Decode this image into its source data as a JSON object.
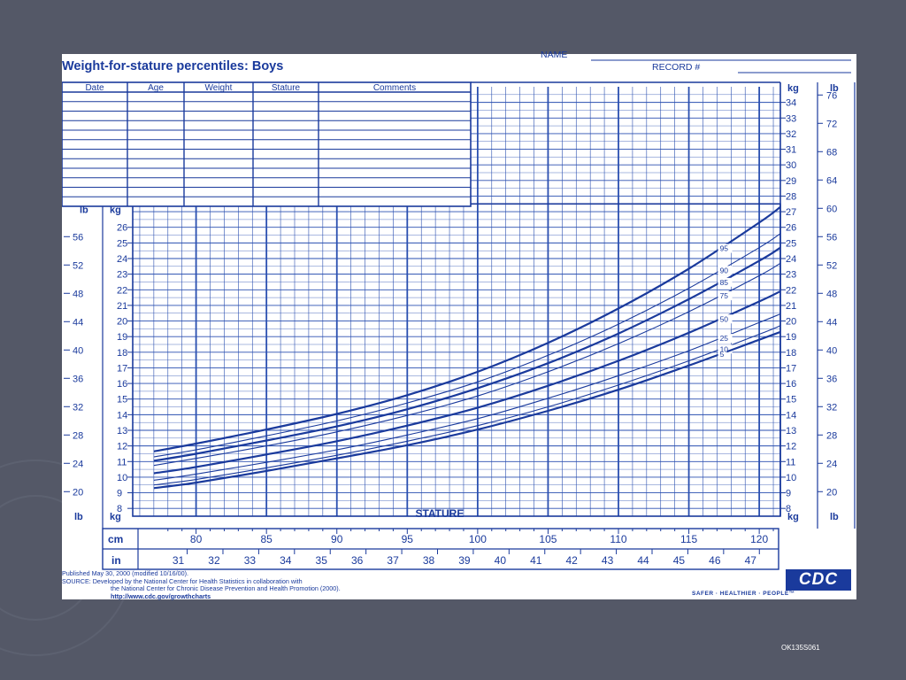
{
  "header": {
    "title": "Weight-for-stature percentiles: Boys",
    "name_label": "NAME",
    "record_label": "RECORD #"
  },
  "record_table": {
    "columns": [
      "Date",
      "Age",
      "Weight",
      "Stature",
      "Comments"
    ],
    "row_count": 12
  },
  "footer": {
    "published": "Published May 30, 2000 (modified 10/16/00).",
    "source_1": "SOURCE: Developed by the National Center for Health Statistics in collaboration with",
    "source_2": "the National Center for Chronic Disease Prevention and Health Promotion (2000).",
    "url": "http://www.cdc.gov/growthcharts",
    "logo_text": "CDC",
    "tagline": "SAFER · HEALTHIER · PEOPLE™"
  },
  "slide": {
    "code": "OK135S061",
    "background_color": "#545867"
  },
  "colors": {
    "ink": "#1a3a9c",
    "grid": "#2a4fb0",
    "paper": "#ffffff"
  },
  "chart_data": {
    "type": "line",
    "title": "Weight-for-stature percentiles: Boys",
    "xlabel": "STATURE",
    "x_unit_primary": "cm",
    "x_unit_secondary": "in",
    "y_unit_primary": "kg",
    "y_unit_secondary": "lb",
    "x_range_cm": [
      77,
      121
    ],
    "y_range_kg": [
      7,
      35
    ],
    "x_ticks_cm": [
      80,
      85,
      90,
      95,
      100,
      105,
      110,
      115,
      120
    ],
    "x_ticks_in": [
      31,
      32,
      33,
      34,
      35,
      36,
      37,
      38,
      39,
      40,
      41,
      42,
      43,
      44,
      45,
      46,
      47
    ],
    "y_ticks_kg_lower": [
      8,
      9,
      10,
      11,
      12,
      13,
      14,
      15,
      16,
      17,
      18,
      19,
      20,
      21,
      22,
      23,
      24,
      25,
      26
    ],
    "y_ticks_kg_upper": [
      8,
      9,
      10,
      11,
      12,
      13,
      14,
      15,
      16,
      17,
      18,
      19,
      20,
      21,
      22,
      23,
      24,
      25,
      26,
      27,
      28,
      29,
      30,
      31,
      32,
      33,
      34
    ],
    "y_ticks_lb_left": [
      20,
      24,
      28,
      32,
      36,
      40,
      44,
      48,
      52,
      56
    ],
    "y_ticks_lb_right": [
      20,
      24,
      28,
      32,
      36,
      40,
      44,
      48,
      52,
      56,
      60,
      64,
      68,
      72,
      76
    ],
    "x_stature_cm": [
      77,
      80,
      85,
      90,
      95,
      100,
      105,
      110,
      115,
      120,
      121.5
    ],
    "series": [
      {
        "name": "95",
        "values": [
          11.65,
          12.15,
          13.05,
          14.05,
          15.25,
          16.75,
          18.6,
          20.8,
          23.35,
          26.3,
          27.3
        ],
        "bold": true
      },
      {
        "name": "90",
        "values": [
          11.3,
          11.75,
          12.65,
          13.6,
          14.75,
          16.1,
          17.8,
          19.8,
          22.1,
          24.7,
          25.6
        ],
        "bold": false
      },
      {
        "name": "85",
        "values": [
          11.05,
          11.5,
          12.35,
          13.25,
          14.35,
          15.7,
          17.3,
          19.2,
          21.4,
          23.85,
          24.7
        ],
        "bold": true
      },
      {
        "name": "75",
        "values": [
          10.75,
          11.2,
          12.0,
          12.9,
          13.95,
          15.2,
          16.75,
          18.55,
          20.6,
          22.9,
          23.7
        ],
        "bold": false
      },
      {
        "name": "50",
        "values": [
          10.25,
          10.65,
          11.45,
          12.3,
          13.3,
          14.45,
          15.85,
          17.45,
          19.25,
          21.25,
          21.9
        ],
        "bold": true
      },
      {
        "name": "25",
        "values": [
          9.8,
          10.2,
          10.95,
          11.75,
          12.7,
          13.75,
          15.05,
          16.5,
          18.1,
          19.9,
          20.45
        ],
        "bold": false
      },
      {
        "name": "10",
        "values": [
          9.5,
          9.85,
          10.6,
          11.4,
          12.3,
          13.3,
          14.5,
          15.9,
          17.45,
          19.15,
          19.7
        ],
        "bold": false
      },
      {
        "name": "5",
        "values": [
          9.3,
          9.65,
          10.4,
          11.2,
          12.05,
          13.05,
          14.25,
          15.6,
          17.15,
          18.8,
          19.3
        ],
        "bold": true
      }
    ],
    "grid": true,
    "legend": "inline labels at right end of curves"
  }
}
